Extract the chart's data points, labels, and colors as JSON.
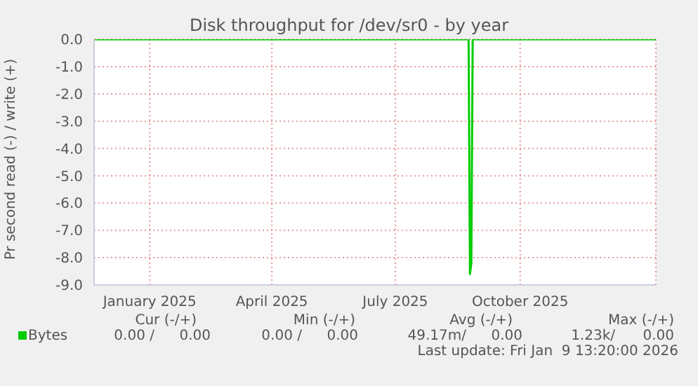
{
  "chart_data": {
    "type": "line",
    "title": "Disk throughput for /dev/sr0 - by year",
    "ylabel": "Pr second read (-) / write (+)",
    "x": [
      "2024-11-21",
      "2025-08-24",
      "2025-08-25",
      "2025-08-26",
      "2025-08-27",
      "2026-01-09"
    ],
    "series": [
      {
        "name": "Bytes",
        "color": "#00cc00",
        "values": [
          0,
          0,
          -8.6,
          -8.2,
          0,
          0
        ]
      }
    ],
    "xlim": [
      "2024-11-21",
      "2026-01-09"
    ],
    "xticks": [
      {
        "value": "2025-01-01",
        "label": "January 2025"
      },
      {
        "value": "2025-04-01",
        "label": "April 2025"
      },
      {
        "value": "2025-07-01",
        "label": "July 2025"
      },
      {
        "value": "2025-10-01",
        "label": "October 2025"
      }
    ],
    "ylim": [
      -9,
      0
    ],
    "yticks": [
      {
        "value": 0,
        "label": "0.0"
      },
      {
        "value": -1,
        "label": "-1.0"
      },
      {
        "value": -2,
        "label": "-2.0"
      },
      {
        "value": -3,
        "label": "-3.0"
      },
      {
        "value": -4,
        "label": "-4.0"
      },
      {
        "value": -5,
        "label": "-5.0"
      },
      {
        "value": -6,
        "label": "-6.0"
      },
      {
        "value": -7,
        "label": "-7.0"
      },
      {
        "value": -8,
        "label": "-8.0"
      },
      {
        "value": -9,
        "label": "-9.0"
      }
    ],
    "grid": true,
    "legend": "bottom left",
    "marker": "none",
    "line_style": "solid",
    "annotations": [
      "Cur (-/+)",
      "Min (-/+)",
      "Avg (-/+)",
      "Max (-/+)",
      "0.00 /",
      "0.00",
      "0.00 /",
      "0.00",
      "49.17m/",
      "0.00",
      "1.23k/",
      "0.00",
      "Last update: Fri Jan  9 13:20:00 2026"
    ]
  }
}
